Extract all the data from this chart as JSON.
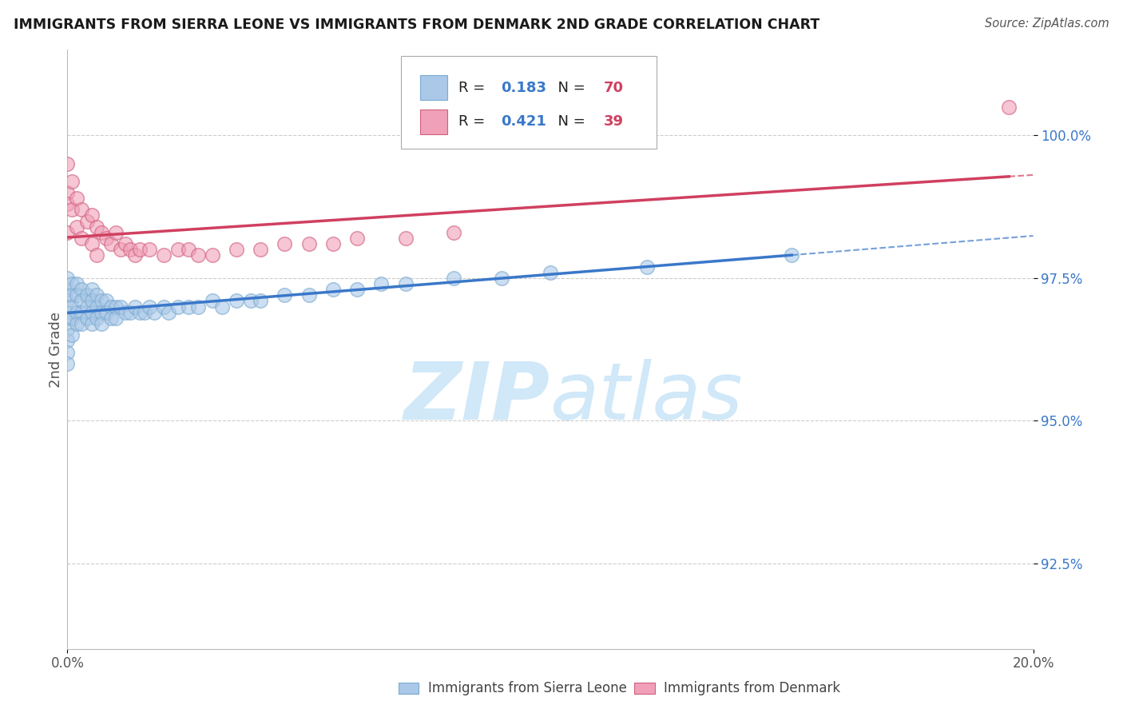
{
  "title": "IMMIGRANTS FROM SIERRA LEONE VS IMMIGRANTS FROM DENMARK 2ND GRADE CORRELATION CHART",
  "source": "Source: ZipAtlas.com",
  "ylabel": "2nd Grade",
  "yticks": [
    100.0,
    97.5,
    95.0,
    92.5
  ],
  "ytick_labels": [
    "100.0%",
    "97.5%",
    "95.0%",
    "92.5%"
  ],
  "xtick_labels": [
    "0.0%",
    "20.0%"
  ],
  "xlim": [
    0.0,
    20.0
  ],
  "ylim": [
    91.0,
    101.5
  ],
  "series_blue": {
    "label": "Immigrants from Sierra Leone",
    "color": "#aac8e8",
    "edge_color": "#7aaad0",
    "R": 0.183,
    "N": 70,
    "x": [
      0.0,
      0.0,
      0.0,
      0.0,
      0.0,
      0.0,
      0.0,
      0.0,
      0.0,
      0.1,
      0.1,
      0.1,
      0.1,
      0.1,
      0.2,
      0.2,
      0.2,
      0.2,
      0.3,
      0.3,
      0.3,
      0.3,
      0.4,
      0.4,
      0.4,
      0.5,
      0.5,
      0.5,
      0.5,
      0.6,
      0.6,
      0.6,
      0.7,
      0.7,
      0.7,
      0.8,
      0.8,
      0.9,
      0.9,
      1.0,
      1.0,
      1.1,
      1.2,
      1.3,
      1.4,
      1.5,
      1.6,
      1.7,
      1.8,
      2.0,
      2.1,
      2.3,
      2.5,
      2.7,
      3.0,
      3.2,
      3.5,
      3.8,
      4.0,
      4.5,
      5.0,
      5.5,
      6.0,
      6.5,
      7.0,
      8.0,
      9.0,
      10.0,
      12.0,
      15.0
    ],
    "y": [
      97.5,
      97.3,
      97.1,
      96.9,
      96.8,
      96.6,
      96.4,
      96.2,
      96.0,
      97.4,
      97.2,
      97.0,
      96.8,
      96.5,
      97.4,
      97.2,
      96.9,
      96.7,
      97.3,
      97.1,
      96.9,
      96.7,
      97.2,
      97.0,
      96.8,
      97.3,
      97.1,
      96.9,
      96.7,
      97.2,
      97.0,
      96.8,
      97.1,
      96.9,
      96.7,
      97.1,
      96.9,
      97.0,
      96.8,
      97.0,
      96.8,
      97.0,
      96.9,
      96.9,
      97.0,
      96.9,
      96.9,
      97.0,
      96.9,
      97.0,
      96.9,
      97.0,
      97.0,
      97.0,
      97.1,
      97.0,
      97.1,
      97.1,
      97.1,
      97.2,
      97.2,
      97.3,
      97.3,
      97.4,
      97.4,
      97.5,
      97.5,
      97.6,
      97.7,
      97.9
    ]
  },
  "series_pink": {
    "label": "Immigrants from Denmark",
    "color": "#f0a0b8",
    "edge_color": "#d06080",
    "R": 0.421,
    "N": 39,
    "x": [
      0.0,
      0.0,
      0.0,
      0.0,
      0.1,
      0.1,
      0.2,
      0.2,
      0.3,
      0.3,
      0.4,
      0.5,
      0.5,
      0.6,
      0.6,
      0.7,
      0.8,
      0.9,
      1.0,
      1.1,
      1.2,
      1.3,
      1.4,
      1.5,
      1.7,
      2.0,
      2.3,
      2.5,
      2.7,
      3.0,
      3.5,
      4.0,
      4.5,
      5.0,
      5.5,
      6.0,
      7.0,
      8.0,
      19.5
    ],
    "y": [
      99.5,
      99.0,
      98.8,
      98.3,
      99.2,
      98.7,
      98.9,
      98.4,
      98.7,
      98.2,
      98.5,
      98.6,
      98.1,
      98.4,
      97.9,
      98.3,
      98.2,
      98.1,
      98.3,
      98.0,
      98.1,
      98.0,
      97.9,
      98.0,
      98.0,
      97.9,
      98.0,
      98.0,
      97.9,
      97.9,
      98.0,
      98.0,
      98.1,
      98.1,
      98.1,
      98.2,
      98.2,
      98.3,
      100.5
    ]
  },
  "watermark_text": "ZIPatlas",
  "watermark_color": "#d0e8f8",
  "regression_color_blue": "#3a78c9",
  "regression_color_pink": "#d04060",
  "legend_R_color": "#3a78c9",
  "legend_N_color": "#d04060",
  "background_color": "#ffffff",
  "grid_color": "#cccccc"
}
